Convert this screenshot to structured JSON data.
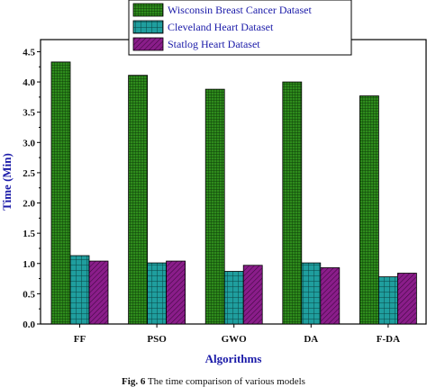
{
  "chart_data": {
    "type": "bar",
    "title": "",
    "xlabel": "Algorithms",
    "ylabel": "Time (Min)",
    "ylim": [
      0,
      4.7
    ],
    "yticks": [
      "0.0",
      "0.5",
      "1.0",
      "1.5",
      "2.0",
      "2.5",
      "3.0",
      "3.5",
      "4.0",
      "4.5"
    ],
    "categories": [
      "FF",
      "PSO",
      "GWO",
      "DA",
      "F-DA"
    ],
    "series": [
      {
        "name": "Wisconsin Breast Cancer Dataset",
        "values": [
          4.33,
          4.11,
          3.88,
          4.0,
          3.77
        ],
        "color": "#2e8b1c"
      },
      {
        "name": "Cleveland Heart Dataset",
        "values": [
          1.13,
          1.01,
          0.87,
          1.01,
          0.78
        ],
        "color": "#1f9e9e"
      },
      {
        "name": "Statlog Heart Dataset",
        "values": [
          1.04,
          1.04,
          0.97,
          0.93,
          0.84
        ],
        "color": "#8a1d8a"
      }
    ],
    "legend_position": "top-center",
    "grid": false
  },
  "caption": {
    "label": "Fig. 6",
    "text": "The time comparison of various models"
  }
}
